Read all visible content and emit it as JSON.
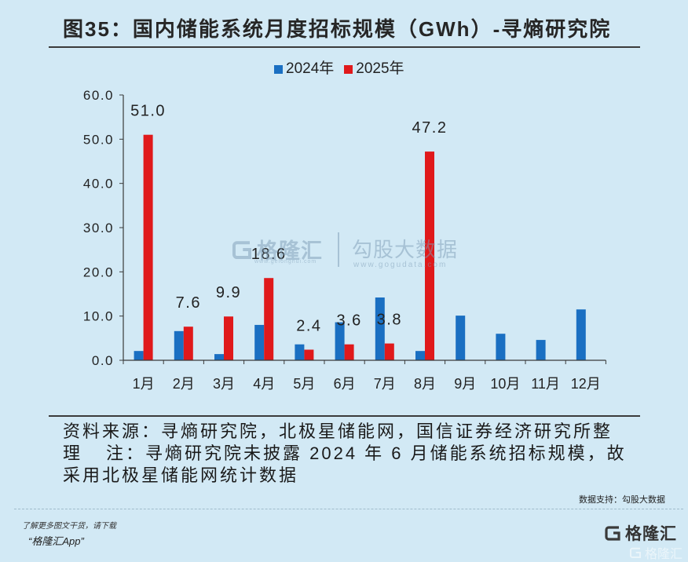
{
  "chart_data": {
    "type": "bar",
    "title": "图35：国内储能系统月度招标规模（GWh）-寻熵研究院",
    "categories": [
      "1月",
      "2月",
      "3月",
      "4月",
      "5月",
      "6月",
      "7月",
      "8月",
      "9月",
      "10月",
      "11月",
      "12月"
    ],
    "series": [
      {
        "name": "2024年",
        "color": "#1a6fc2",
        "values": [
          2.1,
          6.6,
          1.4,
          8.0,
          3.6,
          8.6,
          14.2,
          2.1,
          10.1,
          6.0,
          4.6,
          11.5
        ]
      },
      {
        "name": "2025年",
        "color": "#e0191b",
        "values": [
          51.0,
          7.6,
          9.9,
          18.6,
          2.4,
          3.6,
          3.8,
          47.2,
          null,
          null,
          null,
          null
        ],
        "data_labels": [
          "51.0",
          "7.6",
          "9.9",
          "18.6",
          "2.4",
          "3.6",
          "3.8",
          "47.2",
          null,
          null,
          null,
          null
        ]
      }
    ],
    "ylim": [
      0,
      60
    ],
    "yticks": [
      "0.0",
      "10.0",
      "20.0",
      "30.0",
      "40.0",
      "50.0",
      "60.0"
    ],
    "grid": false,
    "legend": "top-center"
  },
  "source": {
    "text": "资料来源：寻熵研究院，北极星储能网，国信证券经济研究所整理",
    "note": "注：寻熵研究院未披露 2024 年 6 月储能系统招标规模，故采用北极星储能网统计数据"
  },
  "data_support": "数据支持：勾股大数据",
  "footer": {
    "promo": "了解更多图文干货，请下载",
    "app": "“格隆汇App”"
  },
  "logo": {
    "text": "格隆汇",
    "icon": "gelonghui-g-icon"
  },
  "watermark": {
    "left": "格隆汇",
    "left_url": "www.gelonghui.com",
    "right": "勾股大数据",
    "right_url": "www.gogudata.com"
  }
}
